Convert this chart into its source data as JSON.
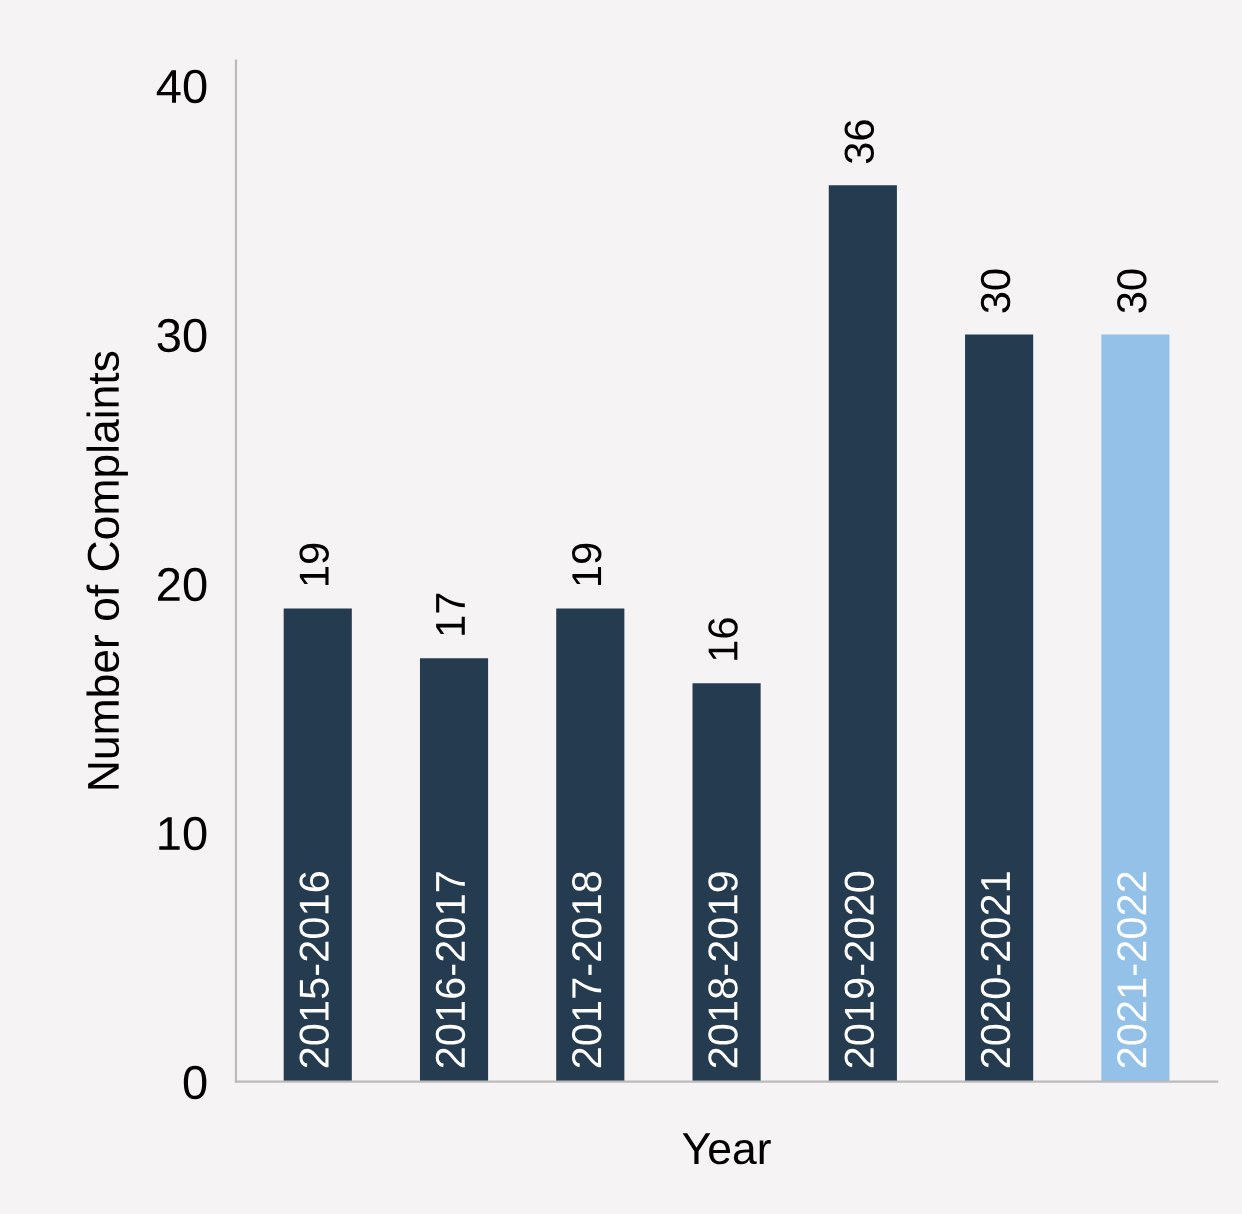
{
  "chart_data": {
    "type": "bar",
    "xlabel": "Year",
    "ylabel": "Number of Complaints",
    "categories": [
      "2015-2016",
      "2016-2017",
      "2017-2018",
      "2018-2019",
      "2019-2020",
      "2020-2021",
      "2021-2022"
    ],
    "values": [
      19,
      17,
      19,
      16,
      36,
      30,
      30
    ],
    "colors": [
      "#253b50",
      "#253b50",
      "#253b50",
      "#253b50",
      "#253b50",
      "#253b50",
      "#93c1e8"
    ],
    "ylim": [
      0,
      41
    ],
    "yticks": [
      0,
      10,
      20,
      30,
      40
    ],
    "grid": false,
    "data_labels": true
  }
}
